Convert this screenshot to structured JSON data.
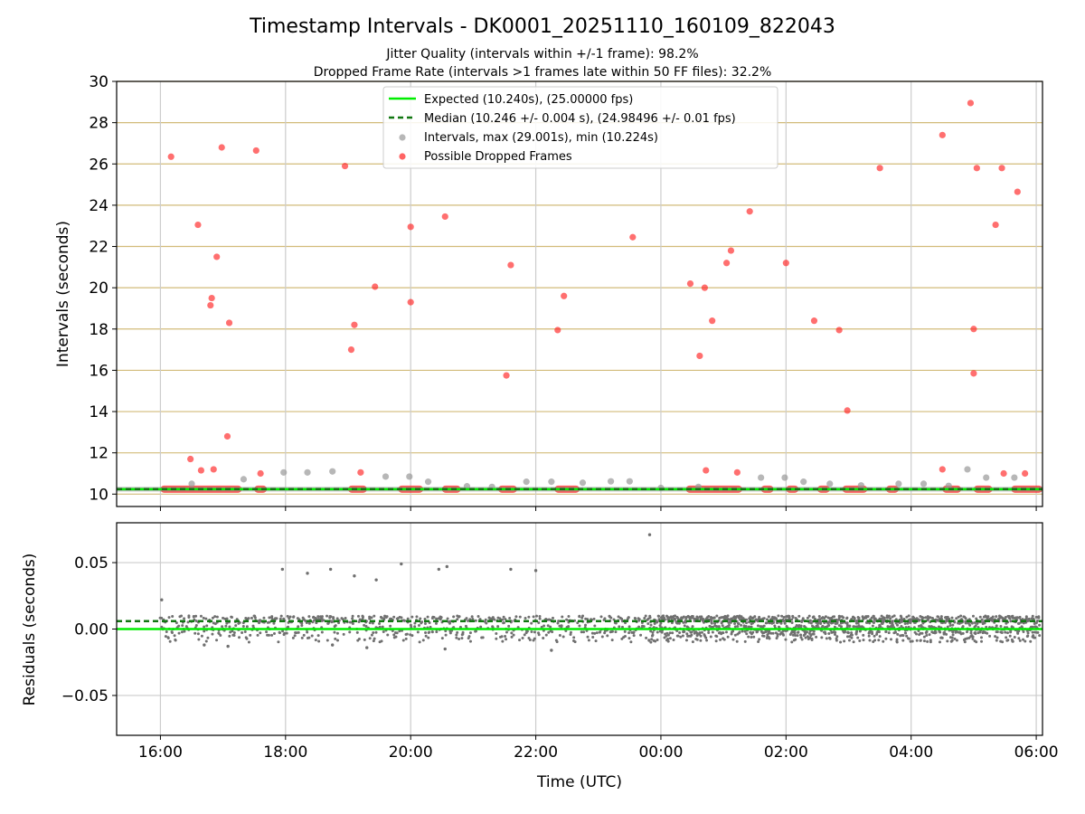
{
  "header": {
    "title": "Timestamp Intervals - DK0001_20251110_160109_822043",
    "subtitle1": "Jitter Quality (intervals within +/-1 frame): 98.2%",
    "subtitle2": "Dropped Frame Rate (intervals >1 frames late within 50 FF files): 32.2%"
  },
  "colors": {
    "expected": "#00ee00",
    "median": "#117711",
    "interval_points": "#999999",
    "dropped": "#ff2222",
    "residual_points": "#707070",
    "hgrid_top": "#d2bb7a",
    "grid": "#cccccc"
  },
  "chart_data": [
    {
      "type": "scatter",
      "panel": "top",
      "ylabel": "Intervals (seconds)",
      "ylim": [
        9.4,
        30.0
      ],
      "xlim_hours": [
        15.3,
        30.1
      ],
      "yticks": [
        10,
        12,
        14,
        16,
        18,
        20,
        22,
        24,
        26,
        28,
        30
      ],
      "grid": true,
      "legend_position": "top-center",
      "legend": [
        "Expected (10.240s), (25.00000 fps)",
        "Median (10.246 +/- 0.004 s), (24.98496 +/- 0.01 fps)",
        "Intervals, max (29.001s), min (10.224s)",
        "Possible Dropped Frames"
      ],
      "expected": 10.24,
      "median": 10.246,
      "intervals_max": 29.001,
      "intervals_min": 10.224,
      "baseline_band": [
        [
          16.0,
          17.3
        ],
        [
          17.5,
          17.7
        ],
        [
          19.0,
          19.3
        ],
        [
          19.8,
          20.2
        ],
        [
          20.5,
          20.8
        ],
        [
          21.4,
          21.7
        ],
        [
          22.3,
          22.7
        ],
        [
          24.4,
          25.3
        ],
        [
          25.6,
          25.8
        ],
        [
          26.0,
          26.2
        ],
        [
          26.5,
          26.7
        ],
        [
          26.9,
          27.3
        ],
        [
          27.6,
          27.8
        ],
        [
          28.5,
          28.8
        ],
        [
          29.0,
          29.3
        ],
        [
          29.6,
          30.1
        ]
      ],
      "intervals_series": {
        "name": "Intervals",
        "points": [
          [
            16.5,
            10.5
          ],
          [
            17.33,
            10.72
          ],
          [
            17.97,
            11.05
          ],
          [
            18.35,
            11.05
          ],
          [
            18.75,
            11.1
          ],
          [
            19.6,
            10.85
          ],
          [
            19.98,
            10.85
          ],
          [
            20.28,
            10.6
          ],
          [
            20.9,
            10.38
          ],
          [
            21.3,
            10.35
          ],
          [
            21.85,
            10.6
          ],
          [
            22.25,
            10.6
          ],
          [
            22.75,
            10.55
          ],
          [
            23.2,
            10.62
          ],
          [
            23.5,
            10.62
          ],
          [
            24.0,
            10.3
          ],
          [
            24.6,
            10.35
          ],
          [
            25.6,
            10.8
          ],
          [
            25.98,
            10.8
          ],
          [
            26.28,
            10.6
          ],
          [
            26.7,
            10.5
          ],
          [
            27.2,
            10.42
          ],
          [
            27.8,
            10.5
          ],
          [
            28.2,
            10.5
          ],
          [
            28.6,
            10.4
          ],
          [
            28.9,
            11.2
          ],
          [
            29.2,
            10.8
          ],
          [
            29.65,
            10.8
          ]
        ]
      },
      "dropped_series": {
        "name": "Possible Dropped Frames",
        "points": [
          [
            16.17,
            26.35
          ],
          [
            16.48,
            11.7
          ],
          [
            16.6,
            23.05
          ],
          [
            16.65,
            11.15
          ],
          [
            16.8,
            19.15
          ],
          [
            16.82,
            19.5
          ],
          [
            16.85,
            11.2
          ],
          [
            16.9,
            21.5
          ],
          [
            16.98,
            26.8
          ],
          [
            17.07,
            12.8
          ],
          [
            17.1,
            18.3
          ],
          [
            17.53,
            26.65
          ],
          [
            17.6,
            11.0
          ],
          [
            18.95,
            25.9
          ],
          [
            19.05,
            17.0
          ],
          [
            19.1,
            18.2
          ],
          [
            19.2,
            11.05
          ],
          [
            19.43,
            20.05
          ],
          [
            20.0,
            22.95
          ],
          [
            20.0,
            19.3
          ],
          [
            20.55,
            23.45
          ],
          [
            21.53,
            15.75
          ],
          [
            21.6,
            21.1
          ],
          [
            22.35,
            17.95
          ],
          [
            22.45,
            19.6
          ],
          [
            23.55,
            22.45
          ],
          [
            24.47,
            20.2
          ],
          [
            24.62,
            16.7
          ],
          [
            24.7,
            20.0
          ],
          [
            24.72,
            11.15
          ],
          [
            24.82,
            18.4
          ],
          [
            25.05,
            21.2
          ],
          [
            25.12,
            21.8
          ],
          [
            25.22,
            11.05
          ],
          [
            25.42,
            23.7
          ],
          [
            26.0,
            21.2
          ],
          [
            26.45,
            18.4
          ],
          [
            26.85,
            17.95
          ],
          [
            26.98,
            14.05
          ],
          [
            27.5,
            25.8
          ],
          [
            28.5,
            27.4
          ],
          [
            28.5,
            11.2
          ],
          [
            28.95,
            28.95
          ],
          [
            29.0,
            18.0
          ],
          [
            29.0,
            15.85
          ],
          [
            29.05,
            25.8
          ],
          [
            29.35,
            23.05
          ],
          [
            29.45,
            25.8
          ],
          [
            29.48,
            11.0
          ],
          [
            29.7,
            24.65
          ],
          [
            29.82,
            11.0
          ]
        ]
      }
    },
    {
      "type": "scatter",
      "panel": "bottom",
      "ylabel": "Residuals (seconds)",
      "xlabel": "Time (UTC)",
      "ylim": [
        -0.08,
        0.08
      ],
      "yticks": [
        -0.05,
        0.0,
        0.05
      ],
      "ytick_labels": [
        "−0.05",
        "0.00",
        "0.05"
      ],
      "xlim_hours": [
        15.3,
        30.1
      ],
      "xticks_hours": [
        16,
        18,
        20,
        22,
        24,
        26,
        28,
        30
      ],
      "xtick_labels": [
        "16:00",
        "18:00",
        "20:00",
        "22:00",
        "00:00",
        "02:00",
        "04:00",
        "06:00"
      ],
      "grid": true,
      "expected_residual": 0.0,
      "median_residual": 0.006,
      "outliers": [
        [
          16.02,
          0.022
        ],
        [
          17.95,
          0.045
        ],
        [
          18.35,
          0.042
        ],
        [
          18.72,
          0.045
        ],
        [
          19.1,
          0.04
        ],
        [
          19.45,
          0.037
        ],
        [
          19.85,
          0.049
        ],
        [
          20.45,
          0.045
        ],
        [
          20.58,
          0.047
        ],
        [
          21.6,
          0.045
        ],
        [
          22.0,
          0.044
        ],
        [
          23.82,
          0.071
        ],
        [
          22.25,
          -0.016
        ],
        [
          20.55,
          -0.015
        ],
        [
          19.3,
          -0.014
        ],
        [
          18.75,
          -0.012
        ],
        [
          17.08,
          -0.013
        ],
        [
          16.7,
          -0.012
        ]
      ]
    }
  ]
}
